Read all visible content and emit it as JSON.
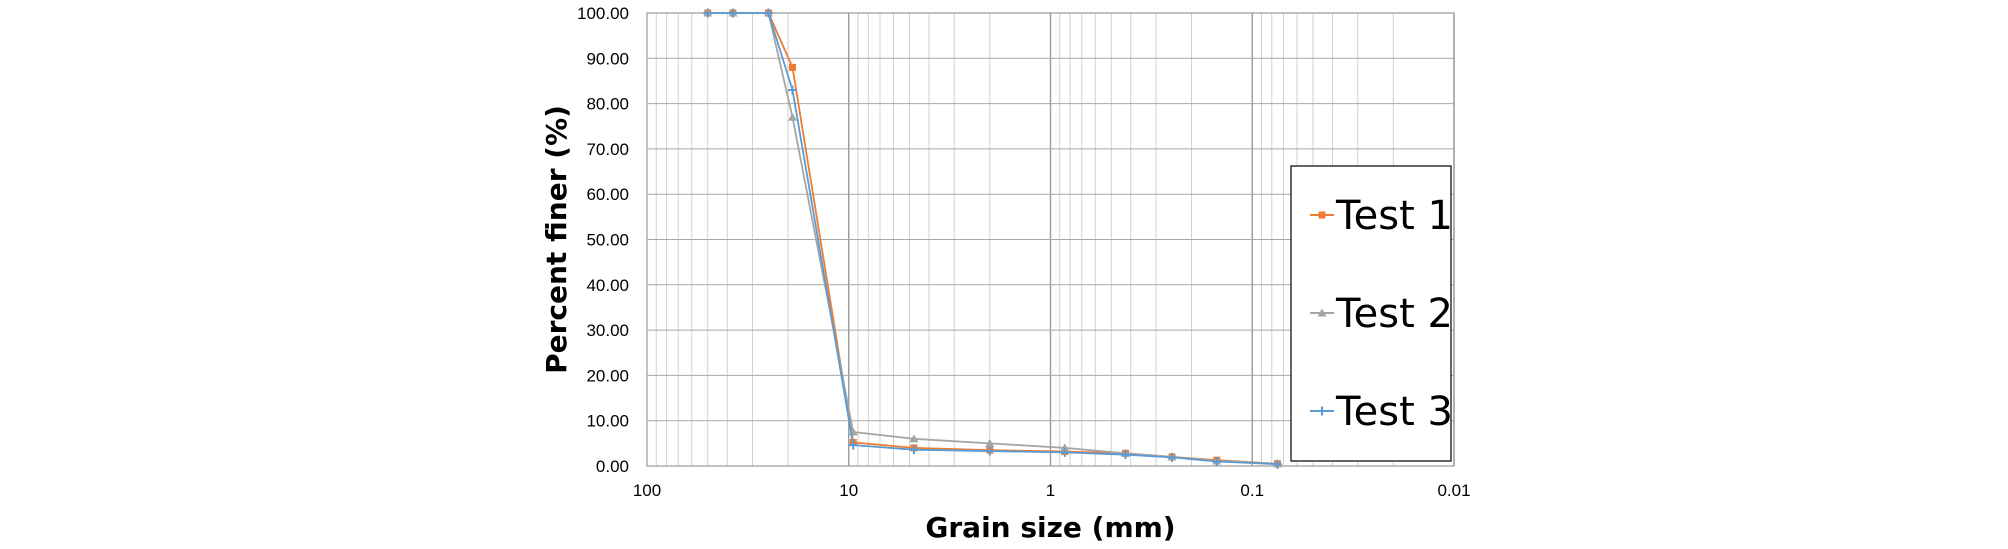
{
  "chart_data": {
    "type": "line",
    "xlabel": "Grain size (mm)",
    "ylabel": "Percent finer (%)",
    "x_scale": "log",
    "x_reversed": true,
    "xlim": [
      100,
      0.01
    ],
    "ylim": [
      0,
      100
    ],
    "x_ticks": [
      {
        "value": 100,
        "label": "100"
      },
      {
        "value": 10,
        "label": "10"
      },
      {
        "value": 1,
        "label": "1"
      },
      {
        "value": 0.1,
        "label": "0.1"
      },
      {
        "value": 0.01,
        "label": "0.01"
      }
    ],
    "y_ticks": [
      {
        "value": 0,
        "label": "0.00"
      },
      {
        "value": 10,
        "label": "10.00"
      },
      {
        "value": 20,
        "label": "20.00"
      },
      {
        "value": 30,
        "label": "30.00"
      },
      {
        "value": 40,
        "label": "40.00"
      },
      {
        "value": 50,
        "label": "50.00"
      },
      {
        "value": 60,
        "label": "60.00"
      },
      {
        "value": 70,
        "label": "70.00"
      },
      {
        "value": 80,
        "label": "80.00"
      },
      {
        "value": 90,
        "label": "90.00"
      },
      {
        "value": 100,
        "label": "100.00"
      }
    ],
    "grid": true,
    "legend_position": "right",
    "x": [
      50,
      37.5,
      25,
      19,
      9.5,
      4.75,
      2,
      0.85,
      0.425,
      0.25,
      0.15,
      0.075
    ],
    "series": [
      {
        "name": "Test 1",
        "color": "#ED7D31",
        "marker": "square",
        "values": [
          100,
          100,
          100,
          88,
          5.2,
          4.0,
          3.5,
          3.2,
          2.8,
          2.0,
          1.3,
          0.5
        ]
      },
      {
        "name": "Test 2",
        "color": "#A5A5A5",
        "marker": "triangle",
        "values": [
          100,
          100,
          100,
          77,
          7.5,
          6.0,
          5.0,
          4.0,
          2.8,
          2.0,
          1.1,
          0.5
        ]
      },
      {
        "name": "Test 3",
        "color": "#5B9BD5",
        "marker": "plus",
        "values": [
          100,
          100,
          100,
          83,
          4.6,
          3.6,
          3.3,
          3.0,
          2.5,
          1.9,
          1.0,
          0.4
        ]
      }
    ]
  }
}
